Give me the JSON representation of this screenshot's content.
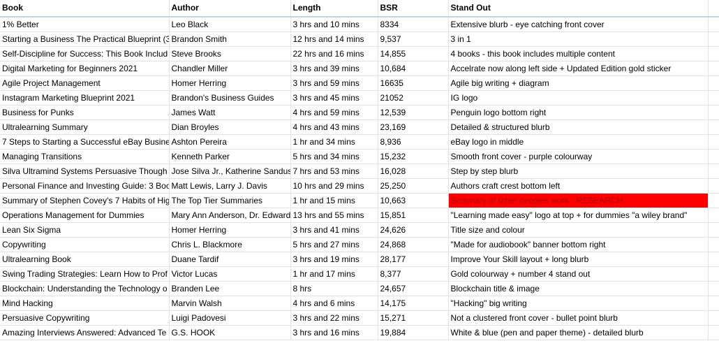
{
  "columns": [
    "Book",
    "Author",
    "Length",
    "BSR",
    "Stand Out"
  ],
  "rows": [
    {
      "book": "1% Better",
      "author": "Leo Black",
      "length": "3 hrs and 10 mins",
      "bsr": "8334",
      "standout": "Extensive blurb - eye catching front cover"
    },
    {
      "book": "Starting a Business The Practical Blueprint (3",
      "author": "Brandon Smith",
      "length": "12 hrs and 14 mins",
      "bsr": "9,537",
      "standout": "3 in 1"
    },
    {
      "book": "Self-Discipline for Success: This Book Includ",
      "author": "Steve Brooks",
      "length": "22 hrs and 16 mins",
      "bsr": "14,855",
      "standout": "4 books - this book includes multiple content"
    },
    {
      "book": "Digital Marketing for Beginners 2021",
      "author": "Chandler Miller",
      "length": "3 hrs and 39 mins",
      "bsr": "10,684",
      "standout": "Accelrate now along left side + Updated Edition gold sticker"
    },
    {
      "book": "Agile Project Management",
      "author": "Homer Herring",
      "length": "3 hrs and 59 mins",
      "bsr": "16635",
      "standout": "Agile big writing + diagram"
    },
    {
      "book": "Instagram Marketing Blueprint 2021",
      "author": "Brandon's Business Guides",
      "length": "3 hrs and 45 mins",
      "bsr": "21052",
      "standout": "IG logo"
    },
    {
      "book": "Business for Punks",
      "author": "James Watt",
      "length": "4 hrs and 59 mins",
      "bsr": "12,539",
      "standout": "Penguin logo bottom right"
    },
    {
      "book": "Ultralearning Summary",
      "author": "Dian Broyles",
      "length": "4 hrs and 43 mins",
      "bsr": "23,169",
      "standout": "Detailed & structured blurb"
    },
    {
      "book": "7 Steps to Starting a Successful eBay Busine",
      "author": "Ashton Pereira",
      "length": "1 hr and 34 mins",
      "bsr": "8,936",
      "standout": "eBay logo in middle"
    },
    {
      "book": "Managing Transitions",
      "author": "Kenneth Parker",
      "length": "5 hrs and 34 mins",
      "bsr": "15,232",
      "standout": "Smooth front cover - purple colourway"
    },
    {
      "book": "Silva Ultramind Systems Persuasive Though",
      "author": "Jose Silva Jr., Katherine Sandus",
      "length": "7 hrs and 53 mins",
      "bsr": "16,028",
      "standout": "Step by step blurb"
    },
    {
      "book": "Personal Finance and Investing Guide: 3 Boo",
      "author": "Matt Lewis, Larry J. Davis",
      "length": "10 hrs and 29 mins",
      "bsr": "25,250",
      "standout": "Authors craft crest bottom left"
    },
    {
      "book": "Summary of Stephen Covey's 7 Habits of Hig",
      "author": "The Top Tier Summaries",
      "length": "1 hr and 15 mins",
      "bsr": "10,663",
      "standout": "Summary of other peoples work - RESEARCH"
    },
    {
      "book": "Operations Management for Dummies",
      "author": "Mary Ann Anderson, Dr. Edward",
      "length": "13 hrs and 55 mins",
      "bsr": "15,851",
      "standout": "\"Learning made easy\" logo at top + for dummies \"a wiley brand\""
    },
    {
      "book": "Lean Six Sigma",
      "author": "Homer Herring",
      "length": "3 hrs and 41 mins",
      "bsr": "24,626",
      "standout": "Title size and colour"
    },
    {
      "book": "Copywriting",
      "author": "Chris L. Blackmore",
      "length": "5 hrs and 27 mins",
      "bsr": "24,868",
      "standout": "\"Made for audiobook\" banner bottom right"
    },
    {
      "book": "Ultralearning Book",
      "author": "Duane Tardif",
      "length": "3 hrs and 19 mins",
      "bsr": "28,177",
      "standout": "Improve Your Skill layout + long blurb"
    },
    {
      "book": "Swing Trading Strategies: Learn How to Prof",
      "author": "Victor Lucas",
      "length": "1 hr and 17 mins",
      "bsr": "8,377",
      "standout": "Gold colourway + number 4 stand out"
    },
    {
      "book": "Blockchain: Understanding the Technology o",
      "author": "Branden Lee",
      "length": "8 hrs",
      "bsr": "24,657",
      "standout": "Blockchain title & image"
    },
    {
      "book": "Mind Hacking",
      "author": "Marvin Walsh",
      "length": "4 hrs and 6 mins",
      "bsr": "14,175",
      "standout": "\"Hacking\" big writing"
    },
    {
      "book": "Persuasive Copywriting",
      "author": "Luigi Padovesi",
      "length": "3 hrs and 22 mins",
      "bsr": "15,271",
      "standout": "Not a clustered front cover - bullet point blurb"
    },
    {
      "book": "Amazing Interviews Answered: Advanced Te",
      "author": "G.S. HOOK",
      "length": "3 hrs and 16 mins",
      "bsr": "19,884",
      "standout": "White & blue (pen and paper theme) - detailed blurb"
    }
  ],
  "highlight": {
    "row_index": 12,
    "column": "standout",
    "fill": "#ff0000",
    "text_color": "#b00000"
  }
}
